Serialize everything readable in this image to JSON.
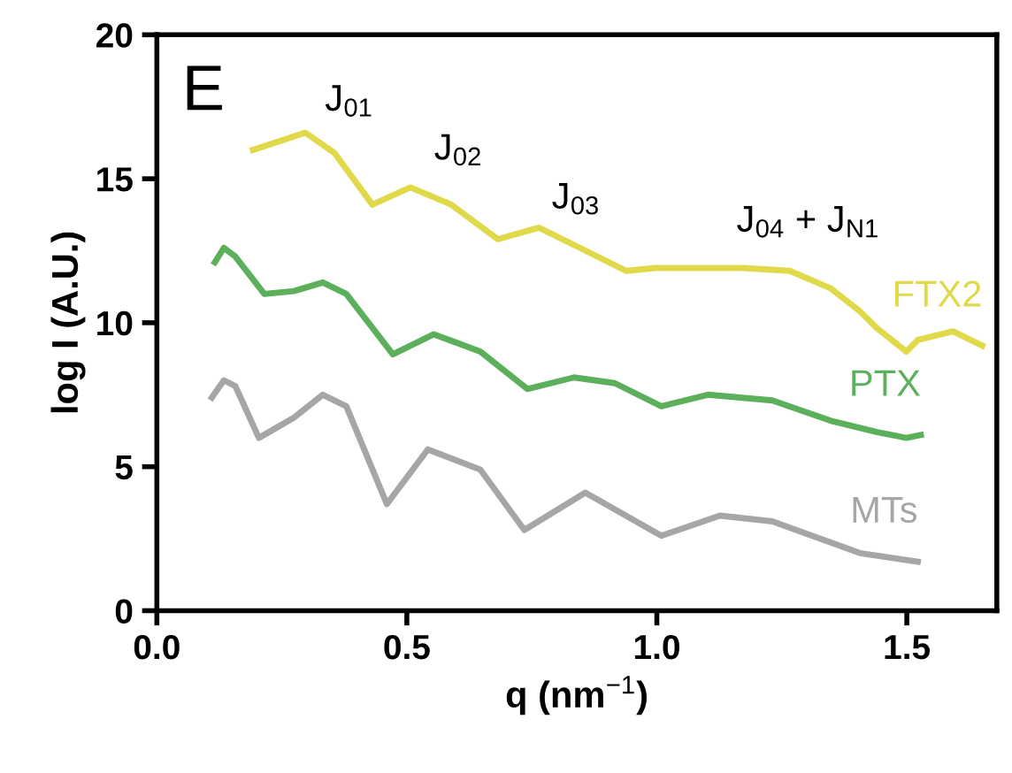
{
  "chart_data": {
    "type": "line",
    "xlabel": "q (nm$^{−1}$)",
    "ylabel": "log I (A.U.)",
    "xlim": [
      0,
      1.68
    ],
    "xticks": [
      {
        "value": 0,
        "label": "0.0"
      },
      {
        "value": 0.5,
        "label": "0.5"
      },
      {
        "value": 1,
        "label": "1.0"
      },
      {
        "value": 1.5,
        "label": "1.5"
      }
    ],
    "ylim": [
      0,
      20
    ],
    "yticks": [
      0,
      5,
      10,
      15,
      20
    ],
    "grid": false,
    "legend": false,
    "marker": "none",
    "line_style": "solid",
    "annotations": [
      "E",
      "J$_{01}$",
      "J$_{02}$",
      "J$_{03}$",
      "J$_{04}$ + J$_{N1}$"
    ],
    "series": [
      {
        "name": "FTX2",
        "color": "#e0d94a",
        "x": [
          0.192,
          0.297,
          0.355,
          0.431,
          0.507,
          0.589,
          0.682,
          0.764,
          0.846,
          0.939,
          0.997,
          1.172,
          1.266,
          1.347,
          1.406,
          1.441,
          1.499,
          1.522,
          1.592,
          1.616,
          1.651
        ],
        "values": [
          16.0,
          16.6,
          15.9,
          14.1,
          14.7,
          14.1,
          12.9,
          13.3,
          12.6,
          11.8,
          11.9,
          11.9,
          11.8,
          11.2,
          10.4,
          9.8,
          9.0,
          9.4,
          9.7,
          9.5,
          9.2
        ]
      },
      {
        "name": "PTX",
        "color": "#5cb05c",
        "x": [
          0.116,
          0.134,
          0.157,
          0.215,
          0.274,
          0.332,
          0.379,
          0.472,
          0.554,
          0.647,
          0.741,
          0.834,
          0.916,
          1.009,
          1.102,
          1.231,
          1.347,
          1.441,
          1.499,
          1.528
        ],
        "values": [
          12.1,
          12.6,
          12.3,
          11.0,
          11.1,
          11.4,
          11.0,
          8.9,
          9.6,
          9.0,
          7.7,
          8.1,
          7.9,
          7.1,
          7.5,
          7.3,
          6.6,
          6.2,
          6.0,
          6.1
        ]
      },
      {
        "name": "MTs",
        "color": "#a6a6a6",
        "x": [
          0.11,
          0.134,
          0.157,
          0.204,
          0.274,
          0.332,
          0.379,
          0.46,
          0.542,
          0.647,
          0.735,
          0.857,
          1.009,
          1.126,
          1.231,
          1.406,
          1.522
        ],
        "values": [
          7.4,
          8.0,
          7.8,
          6.0,
          6.7,
          7.5,
          7.1,
          3.7,
          5.6,
          4.9,
          2.8,
          4.1,
          2.6,
          3.3,
          3.1,
          2.0,
          1.7
        ]
      }
    ]
  }
}
